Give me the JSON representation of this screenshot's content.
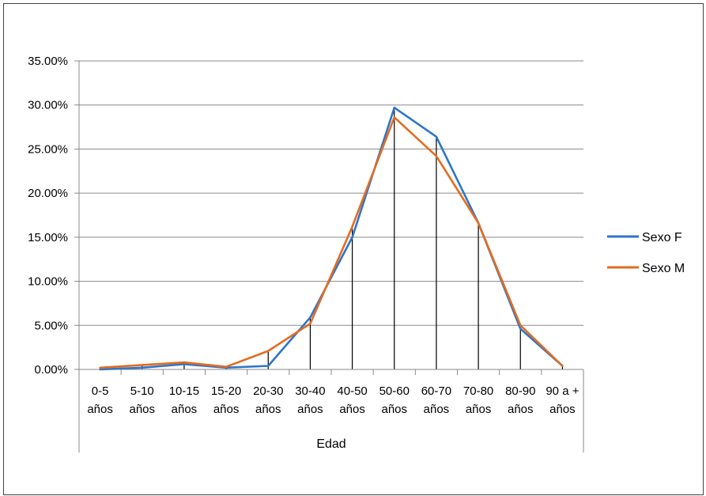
{
  "chart_data": {
    "type": "line",
    "categories": [
      "0-5 años",
      "5-10 años",
      "10-15 años",
      "15-20 años",
      "20-30 años",
      "30-40 años",
      "40-50 años",
      "50-60 años",
      "60-70 años",
      "70-80 años",
      "80-90 años",
      "90 a + años"
    ],
    "category_lines": [
      [
        "0-5",
        "años"
      ],
      [
        "5-10",
        "años"
      ],
      [
        "10-15",
        "años"
      ],
      [
        "15-20",
        "años"
      ],
      [
        "20-30",
        "años"
      ],
      [
        "30-40",
        "años"
      ],
      [
        "40-50",
        "años"
      ],
      [
        "50-60",
        "años"
      ],
      [
        "60-70",
        "años"
      ],
      [
        "70-80",
        "años"
      ],
      [
        "80-90",
        "años"
      ],
      [
        "90 a +",
        "años"
      ]
    ],
    "series": [
      {
        "name": "Sexo F",
        "color": "#2E75C8",
        "values": [
          0.0,
          0.2,
          0.6,
          0.2,
          0.4,
          5.9,
          15.0,
          29.7,
          26.4,
          16.6,
          4.6,
          0.4
        ]
      },
      {
        "name": "Sexo M",
        "color": "#E46C1F",
        "values": [
          0.2,
          0.5,
          0.8,
          0.3,
          2.1,
          5.2,
          16.2,
          28.6,
          24.2,
          16.6,
          5.0,
          0.4
        ]
      }
    ],
    "xlabel": "Edad",
    "ylabel": "",
    "ylim": [
      0,
      35
    ],
    "yticks": [
      {
        "value": 0,
        "label": "0.00%"
      },
      {
        "value": 5,
        "label": "5.00%"
      },
      {
        "value": 10,
        "label": "10.00%"
      },
      {
        "value": 15,
        "label": "15.00%"
      },
      {
        "value": 20,
        "label": "20.00%"
      },
      {
        "value": 25,
        "label": "25.00%"
      },
      {
        "value": 30,
        "label": "30.00%"
      },
      {
        "value": 35,
        "label": "35.00%"
      }
    ],
    "grid": true,
    "drop_lines": true,
    "legend_position": "right"
  }
}
